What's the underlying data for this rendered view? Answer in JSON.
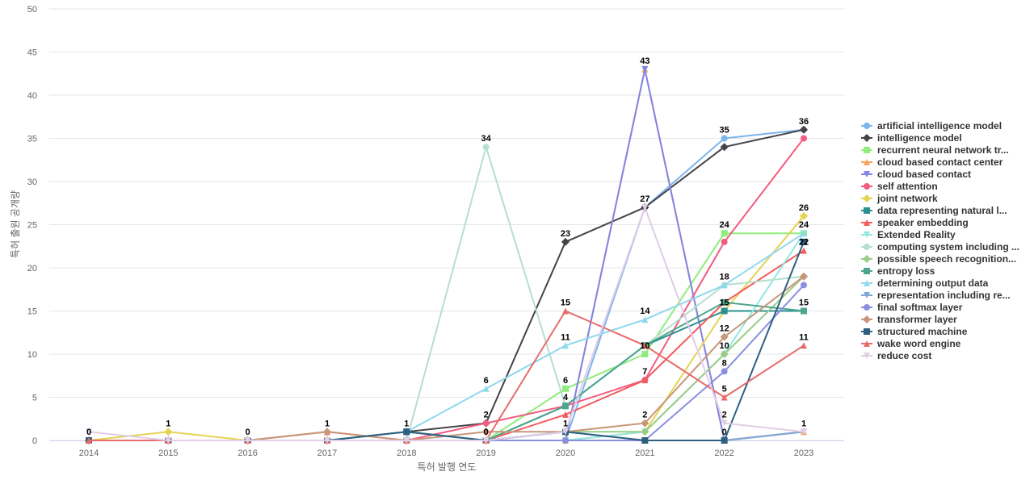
{
  "chart_data": {
    "type": "line",
    "title": "",
    "xlabel": "특허 발행 연도",
    "ylabel": "특허 출원 공개량",
    "ylim": [
      0,
      50
    ],
    "yticks": [
      0,
      5,
      10,
      15,
      20,
      25,
      30,
      35,
      40,
      45,
      50
    ],
    "grid": true,
    "legend_position": "right",
    "categories": [
      "2014",
      "2015",
      "2016",
      "2017",
      "2018",
      "2019",
      "2020",
      "2021",
      "2022",
      "2023"
    ],
    "series": [
      {
        "name": "artificial intelligence model",
        "color": "#7cb5ec",
        "marker": "circle",
        "values": [
          0,
          0,
          0,
          0,
          0,
          0,
          0,
          27,
          35,
          36
        ],
        "labels": [
          false,
          false,
          false,
          false,
          false,
          false,
          false,
          false,
          true,
          true
        ]
      },
      {
        "name": "intelligence model",
        "color": "#434348",
        "marker": "diamond",
        "values": [
          0,
          0,
          0,
          0,
          1,
          2,
          23,
          27,
          34,
          36
        ],
        "labels": [
          false,
          false,
          false,
          false,
          false,
          false,
          true,
          true,
          false,
          false
        ]
      },
      {
        "name": "recurrent neural network tr...",
        "color": "#90ed7d",
        "marker": "square",
        "values": [
          0,
          0,
          0,
          0,
          0,
          0,
          6,
          10,
          24,
          24
        ],
        "labels": [
          false,
          false,
          false,
          false,
          false,
          false,
          true,
          true,
          true,
          false
        ]
      },
      {
        "name": "cloud based contact center",
        "color": "#f7a35c",
        "marker": "triangle",
        "values": [
          0,
          0,
          0,
          0,
          0,
          0,
          0,
          43,
          0,
          1
        ],
        "labels": [
          false,
          false,
          false,
          false,
          false,
          false,
          false,
          false,
          false,
          false
        ]
      },
      {
        "name": "cloud based contact",
        "color": "#8085e9",
        "marker": "triangle-down",
        "values": [
          0,
          0,
          0,
          0,
          0,
          0,
          0,
          43,
          0,
          1
        ],
        "labels": [
          false,
          false,
          false,
          false,
          false,
          false,
          false,
          true,
          false,
          false
        ]
      },
      {
        "name": "self attention",
        "color": "#f15c80",
        "marker": "circle",
        "values": [
          0,
          0,
          0,
          0,
          0,
          2,
          4,
          7,
          23,
          35
        ],
        "labels": [
          false,
          false,
          false,
          false,
          false,
          true,
          false,
          false,
          false,
          false
        ]
      },
      {
        "name": "joint network",
        "color": "#e4d354",
        "marker": "diamond",
        "values": [
          0,
          1,
          0,
          0,
          0,
          0,
          0,
          1,
          15,
          26
        ],
        "labels": [
          false,
          true,
          false,
          false,
          false,
          false,
          false,
          false,
          false,
          true
        ]
      },
      {
        "name": "data representing natural l...",
        "color": "#2b908f",
        "marker": "square",
        "values": [
          0,
          0,
          0,
          0,
          1,
          0,
          4,
          11,
          15,
          15
        ],
        "labels": [
          false,
          false,
          false,
          false,
          false,
          false,
          true,
          false,
          true,
          true
        ]
      },
      {
        "name": "speaker embedding",
        "color": "#f45b5b",
        "marker": "triangle",
        "values": [
          0,
          0,
          0,
          1,
          0,
          0,
          3,
          7,
          16,
          22
        ],
        "labels": [
          false,
          false,
          false,
          false,
          false,
          false,
          false,
          true,
          false,
          true
        ]
      },
      {
        "name": "Extended Reality",
        "color": "#91e8e1",
        "marker": "triangle-down",
        "values": [
          0,
          0,
          0,
          0,
          0,
          0,
          0,
          1,
          10,
          24
        ],
        "labels": [
          false,
          false,
          false,
          false,
          false,
          false,
          false,
          false,
          true,
          true
        ]
      },
      {
        "name": "computing system including ...",
        "color": "#b5dfcf",
        "marker": "circle",
        "values": [
          0,
          0,
          0,
          0,
          0,
          34,
          4,
          11,
          18,
          19
        ],
        "labels": [
          false,
          false,
          false,
          false,
          false,
          true,
          false,
          false,
          false,
          false
        ]
      },
      {
        "name": "possible speech recognition...",
        "color": "#99cc88",
        "marker": "diamond",
        "values": [
          0,
          0,
          0,
          0,
          0,
          0,
          1,
          1,
          10,
          19
        ],
        "labels": [
          false,
          false,
          false,
          false,
          false,
          false,
          false,
          false,
          false,
          false
        ]
      },
      {
        "name": "entropy loss",
        "color": "#4ea58f",
        "marker": "square",
        "values": [
          0,
          0,
          0,
          0,
          0,
          0,
          4,
          11,
          16,
          15
        ],
        "labels": [
          false,
          false,
          false,
          false,
          false,
          false,
          false,
          false,
          false,
          false
        ]
      },
      {
        "name": "determining output data",
        "color": "#8fd8ee",
        "marker": "triangle",
        "values": [
          0,
          0,
          0,
          0,
          1,
          6,
          11,
          14,
          18,
          24
        ],
        "labels": [
          false,
          false,
          false,
          false,
          false,
          true,
          true,
          true,
          true,
          false
        ]
      },
      {
        "name": "representation including re...",
        "color": "#7fa6d6",
        "marker": "triangle-down",
        "values": [
          0,
          0,
          0,
          0,
          0,
          0,
          1,
          0,
          0,
          1
        ],
        "labels": [
          false,
          false,
          false,
          false,
          false,
          false,
          false,
          false,
          false,
          false
        ]
      },
      {
        "name": "final softmax layer",
        "color": "#8a8fdf",
        "marker": "circle",
        "values": [
          0,
          0,
          0,
          0,
          0,
          0,
          0,
          0,
          8,
          18
        ],
        "labels": [
          false,
          false,
          false,
          false,
          false,
          false,
          false,
          false,
          true,
          false
        ]
      },
      {
        "name": "transformer layer",
        "color": "#c7977a",
        "marker": "diamond",
        "values": [
          0,
          0,
          0,
          1,
          0,
          1,
          1,
          2,
          12,
          19
        ],
        "labels": [
          false,
          false,
          false,
          true,
          false,
          false,
          false,
          true,
          true,
          false
        ]
      },
      {
        "name": "structured machine",
        "color": "#2f5f80",
        "marker": "square",
        "values": [
          0,
          0,
          0,
          0,
          1,
          0,
          1,
          0,
          0,
          23
        ],
        "labels": [
          true,
          false,
          true,
          false,
          true,
          false,
          true,
          false,
          true,
          false
        ]
      },
      {
        "name": "wake word engine",
        "color": "#e86b6b",
        "marker": "triangle",
        "values": [
          0,
          0,
          0,
          0,
          0,
          0,
          15,
          11,
          5,
          11
        ],
        "labels": [
          false,
          false,
          false,
          false,
          false,
          false,
          true,
          false,
          true,
          true
        ]
      },
      {
        "name": "reduce cost",
        "color": "#e0cde6",
        "marker": "triangle-down",
        "values": [
          1,
          0,
          0,
          0,
          0,
          0,
          1,
          27,
          2,
          1
        ],
        "labels": [
          false,
          false,
          false,
          false,
          false,
          true,
          false,
          false,
          true,
          true
        ]
      }
    ]
  }
}
